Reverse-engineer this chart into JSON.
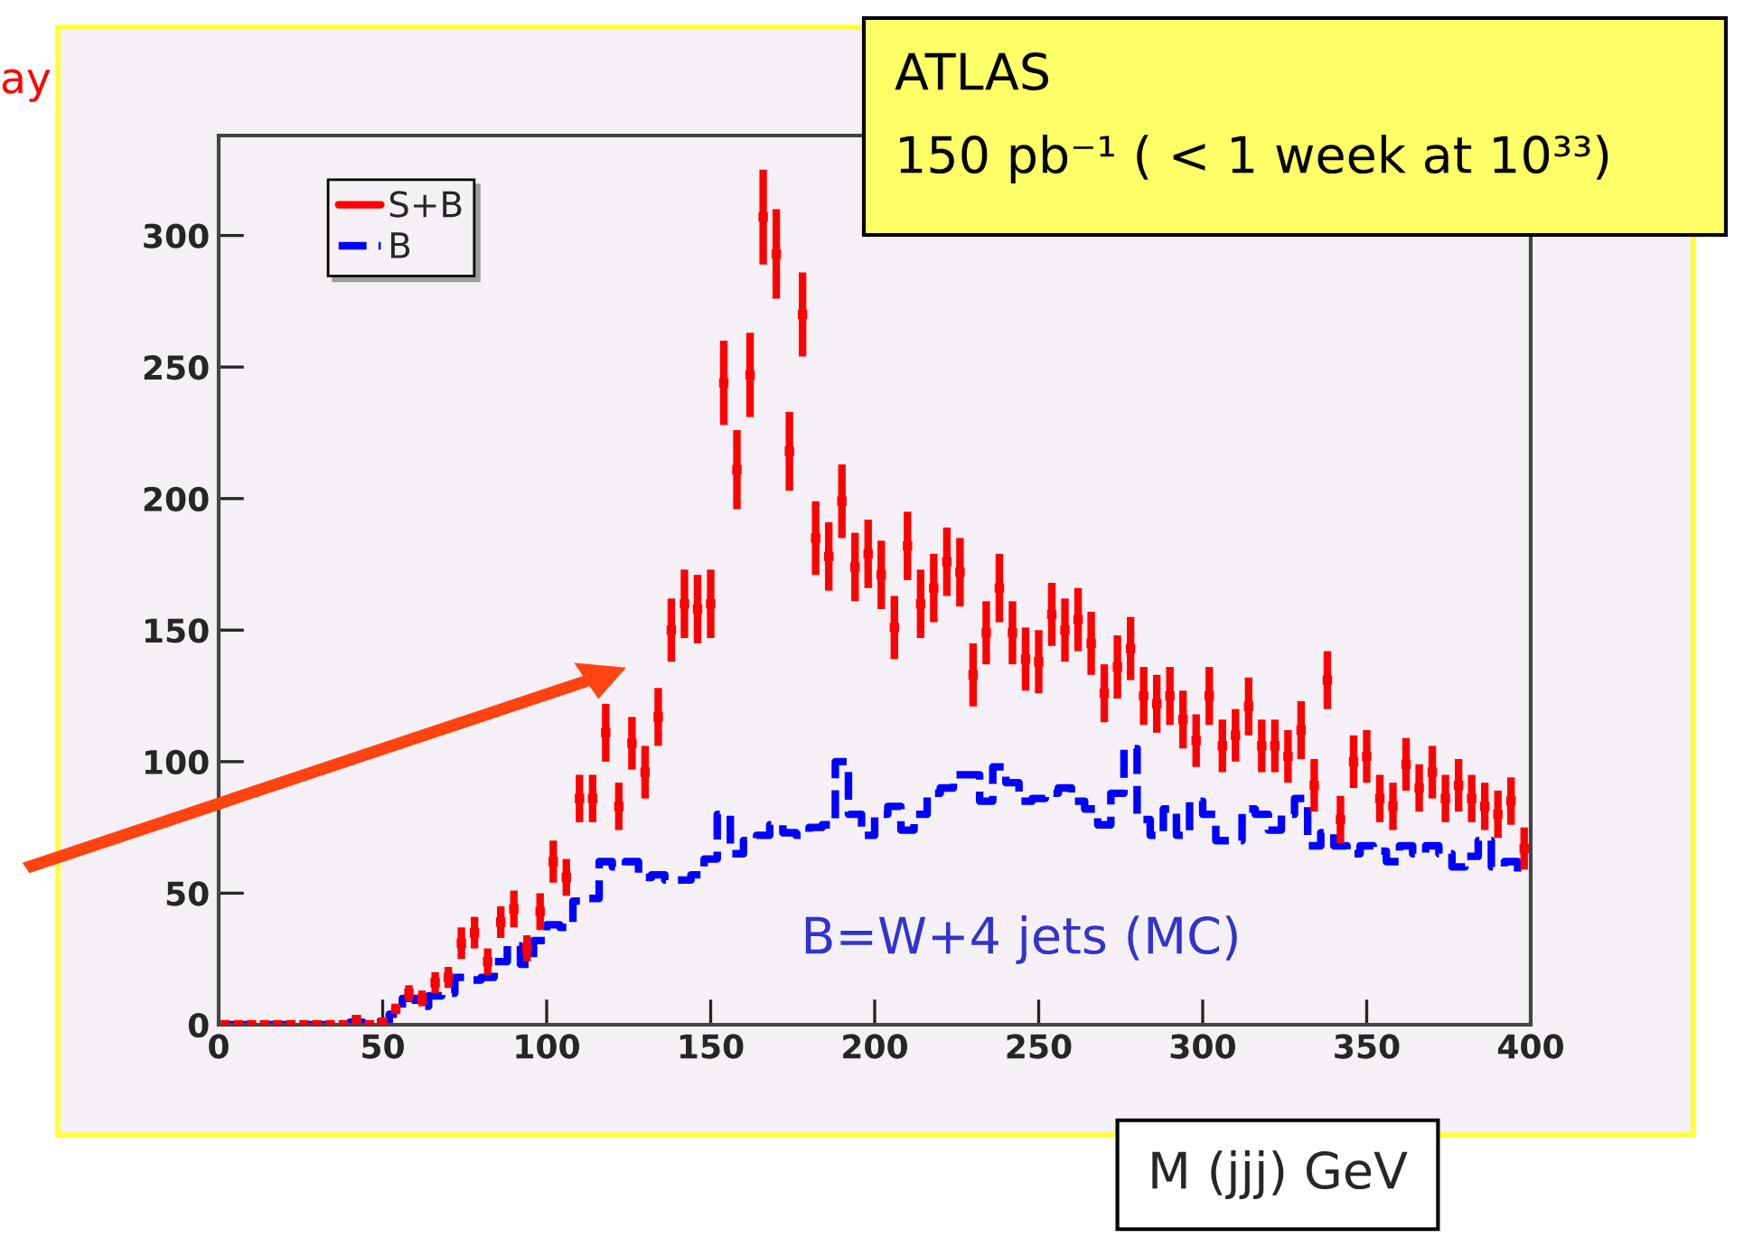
{
  "chart_data": {
    "type": "scatter",
    "xlabel": "M (jjj) GeV",
    "annotations": [
      "ay",
      "ATLAS",
      "150 pb⁻¹ ( < 1 week at 10³³)",
      "B=W+4 jets (MC)"
    ],
    "x": [
      2,
      6,
      10,
      14,
      18,
      22,
      26,
      30,
      34,
      38,
      42,
      46,
      50,
      54,
      58,
      62,
      66,
      70,
      74,
      78,
      82,
      86,
      90,
      94,
      98,
      102,
      106,
      110,
      114,
      118,
      122,
      126,
      130,
      134,
      138,
      142,
      146,
      150,
      154,
      158,
      162,
      166,
      170,
      174,
      178,
      182,
      186,
      190,
      194,
      198,
      202,
      206,
      210,
      214,
      218,
      222,
      226,
      230,
      234,
      238,
      242,
      246,
      250,
      254,
      258,
      262,
      266,
      270,
      274,
      278,
      282,
      286,
      290,
      294,
      298,
      302,
      306,
      310,
      314,
      318,
      322,
      326,
      330,
      334,
      338,
      342,
      346,
      350,
      354,
      358,
      362,
      366,
      370,
      374,
      378,
      382,
      386,
      390,
      394,
      398
    ],
    "series": [
      {
        "name": "S+B",
        "color": "#ff0000",
        "marker": "square",
        "values": [
          0,
          0,
          0,
          0,
          0,
          0,
          0,
          0,
          0,
          0,
          2,
          0,
          1,
          6,
          12,
          10,
          16,
          18,
          31,
          35,
          24,
          39,
          44,
          29,
          43,
          62,
          56,
          86,
          86,
          111,
          83,
          107,
          96,
          117,
          150,
          160,
          158,
          160,
          244,
          211,
          247,
          307,
          293,
          218,
          270,
          185,
          178,
          199,
          174,
          179,
          171,
          151,
          182,
          160,
          166,
          176,
          172,
          133,
          149,
          166,
          149,
          139,
          138,
          156,
          150,
          154,
          145,
          126,
          136,
          143,
          125,
          122,
          125,
          116,
          108,
          125,
          106,
          110,
          121,
          106,
          106,
          102,
          112,
          91,
          131,
          78,
          100,
          102,
          86,
          83,
          99,
          90,
          96,
          86,
          91,
          86,
          83,
          80,
          85,
          67
        ],
        "errors": [
          null,
          null,
          null,
          null,
          null,
          null,
          null,
          null,
          null,
          null,
          1,
          null,
          1,
          2,
          3,
          3,
          4,
          4,
          6,
          6,
          5,
          6,
          7,
          5,
          7,
          8,
          7,
          9,
          9,
          11,
          9,
          10,
          10,
          11,
          12,
          13,
          13,
          13,
          16,
          15,
          16,
          18,
          17,
          15,
          16,
          14,
          13,
          14,
          13,
          13,
          13,
          12,
          13,
          13,
          13,
          13,
          13,
          12,
          12,
          13,
          12,
          12,
          12,
          12,
          12,
          12,
          12,
          11,
          12,
          12,
          11,
          11,
          11,
          11,
          10,
          11,
          10,
          10,
          11,
          10,
          10,
          10,
          11,
          10,
          11,
          9,
          10,
          10,
          9,
          9,
          10,
          9,
          10,
          9,
          10,
          9,
          9,
          9,
          9,
          8
        ]
      },
      {
        "name": "B",
        "type": "step",
        "color": "#0000ff",
        "line_style": "dashed",
        "values": [
          0,
          0,
          0,
          0,
          0,
          0,
          0,
          0,
          0,
          0,
          1,
          0,
          1,
          4,
          10,
          7,
          11,
          12,
          18,
          17,
          18,
          24,
          30,
          23,
          32,
          38,
          37,
          47,
          48,
          62,
          60,
          62,
          56,
          57,
          55,
          55,
          57,
          63,
          80,
          65,
          70,
          72,
          76,
          73,
          72,
          75,
          76,
          100,
          80,
          72,
          80,
          83,
          74,
          80,
          88,
          90,
          95,
          95,
          85,
          98,
          92,
          85,
          86,
          88,
          90,
          85,
          82,
          76,
          88,
          105,
          78,
          72,
          82,
          72,
          85,
          80,
          70,
          70,
          82,
          80,
          74,
          80,
          86,
          68,
          73,
          68,
          65,
          68,
          66,
          62,
          68,
          65,
          68,
          65,
          60,
          64,
          70,
          60,
          62,
          58
        ]
      }
    ],
    "xlim": [
      0,
      400
    ],
    "ylim": [
      0,
      338
    ],
    "xticks": [
      0,
      50,
      100,
      150,
      200,
      250,
      300,
      350,
      400
    ],
    "yticks": [
      0,
      50,
      100,
      150,
      200,
      250,
      300
    ],
    "legend": "top left",
    "grid": false
  }
}
